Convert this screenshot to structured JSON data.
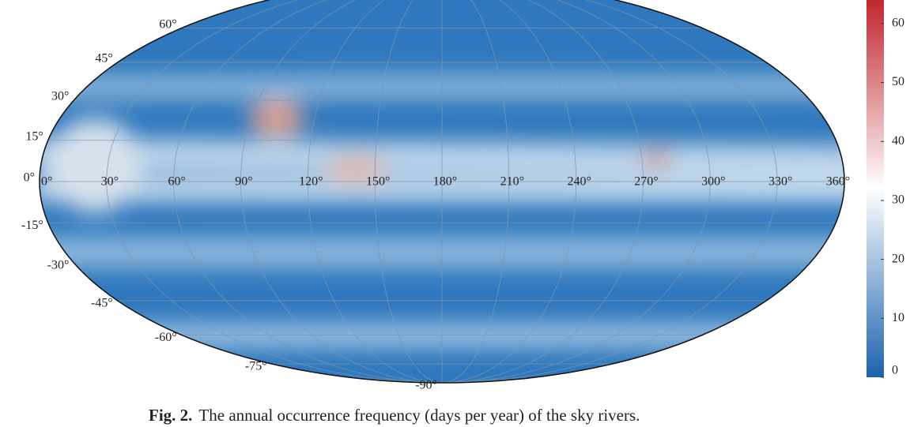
{
  "map": {
    "lat_labels": [
      {
        "value": 60,
        "label": "60°"
      },
      {
        "value": 45,
        "label": "45°"
      },
      {
        "value": 30,
        "label": "30°"
      },
      {
        "value": 15,
        "label": "15°"
      },
      {
        "value": 0,
        "label": "0°"
      },
      {
        "value": -15,
        "label": "-15°"
      },
      {
        "value": -30,
        "label": "-30°"
      },
      {
        "value": -45,
        "label": "-45°"
      },
      {
        "value": -60,
        "label": "-60°"
      },
      {
        "value": -75,
        "label": "-75°"
      },
      {
        "value": -90,
        "label": "-90°"
      }
    ],
    "lon_labels": [
      {
        "value": 0,
        "label": "0°"
      },
      {
        "value": 30,
        "label": "30°"
      },
      {
        "value": 60,
        "label": "60°"
      },
      {
        "value": 90,
        "label": "90°"
      },
      {
        "value": 120,
        "label": "120°"
      },
      {
        "value": 150,
        "label": "150°"
      },
      {
        "value": 180,
        "label": "180°"
      },
      {
        "value": 210,
        "label": "210°"
      },
      {
        "value": 240,
        "label": "240°"
      },
      {
        "value": 270,
        "label": "270°"
      },
      {
        "value": 300,
        "label": "300°"
      },
      {
        "value": 330,
        "label": "330°"
      },
      {
        "value": 360,
        "label": "360°"
      }
    ],
    "colorbar": {
      "lim": [
        0,
        64
      ],
      "ticks": [
        0,
        10,
        20,
        30,
        40,
        50,
        60
      ],
      "colors": [
        "#1b62ad",
        "#ffffff",
        "#c0262c"
      ]
    },
    "caption": {
      "label": "Fig. 2.",
      "text": "The annual occurrence frequency (days per year) of the sky rivers."
    }
  }
}
